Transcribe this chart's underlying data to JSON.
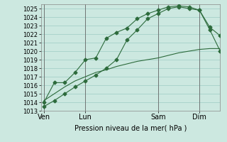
{
  "xlabel": "Pression niveau de la mer( hPa )",
  "bg_color": "#cce8e0",
  "grid_color": "#aad4cc",
  "line_color": "#2d6b3c",
  "ylim": [
    1013,
    1025.5
  ],
  "yticks": [
    1013,
    1014,
    1015,
    1016,
    1017,
    1018,
    1019,
    1020,
    1021,
    1022,
    1023,
    1024,
    1025
  ],
  "xtick_labels": [
    "Ven",
    "Lun",
    "Sam",
    "Dim"
  ],
  "xtick_positions": [
    0,
    4,
    11,
    15
  ],
  "xlim": [
    -0.3,
    17
  ],
  "series1_x": [
    0,
    1,
    2,
    3,
    4,
    5,
    6,
    7,
    8,
    9,
    10,
    11,
    12,
    13,
    14,
    15,
    16,
    17
  ],
  "series1_y": [
    1013.5,
    1014.2,
    1015.0,
    1015.8,
    1016.5,
    1017.2,
    1018.0,
    1019.0,
    1021.3,
    1022.5,
    1023.8,
    1024.4,
    1025.0,
    1025.2,
    1025.0,
    1024.8,
    1022.5,
    1020.0
  ],
  "series2_x": [
    0,
    1,
    2,
    3,
    4,
    5,
    6,
    7,
    8,
    9,
    10,
    11,
    12,
    13,
    14,
    15,
    16,
    17
  ],
  "series2_y": [
    1014.0,
    1016.3,
    1016.3,
    1017.5,
    1019.0,
    1019.2,
    1021.5,
    1022.2,
    1022.7,
    1023.8,
    1024.4,
    1024.8,
    1025.2,
    1025.3,
    1025.2,
    1024.8,
    1022.8,
    1021.8
  ],
  "series3_x": [
    0,
    1,
    2,
    3,
    4,
    5,
    6,
    7,
    8,
    9,
    10,
    11,
    12,
    13,
    14,
    15,
    16,
    17
  ],
  "series3_y": [
    1014.2,
    1015.0,
    1015.8,
    1016.5,
    1017.0,
    1017.5,
    1017.8,
    1018.2,
    1018.5,
    1018.8,
    1019.0,
    1019.2,
    1019.5,
    1019.8,
    1020.0,
    1020.2,
    1020.3,
    1020.3
  ],
  "tick_fontsize": 6,
  "xlabel_fontsize": 7,
  "marker_size": 2.5
}
